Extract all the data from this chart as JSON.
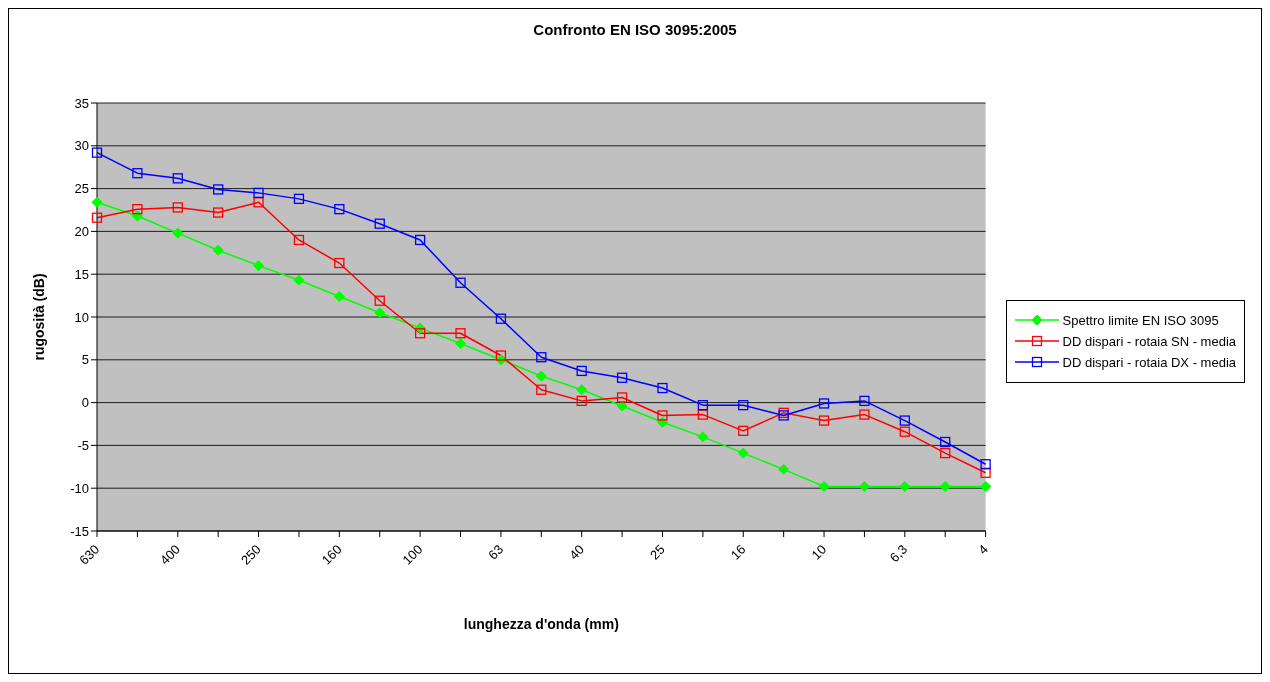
{
  "chart_data": {
    "type": "line",
    "title": "Confronto EN ISO 3095:2005",
    "xlabel": "lunghezza d'onda (mm)",
    "ylabel": "rugosità (dB)",
    "categories": [
      "630",
      null,
      "400",
      null,
      "250",
      null,
      "160",
      null,
      "100",
      null,
      "63",
      null,
      "40",
      null,
      "25",
      null,
      "16",
      null,
      "10",
      null,
      "6,3",
      null,
      "4"
    ],
    "series": [
      {
        "name": "Spettro limite EN ISO 3095",
        "color": "#00ff00",
        "marker": "diamond",
        "values": [
          23.4,
          21.8,
          19.8,
          17.8,
          16.0,
          14.3,
          12.4,
          10.5,
          8.7,
          6.9,
          5.0,
          3.1,
          1.5,
          -0.4,
          -2.3,
          -4.0,
          -5.9,
          -7.8,
          -9.8,
          -9.8,
          -9.8,
          -9.8,
          -9.8
        ]
      },
      {
        "name": "DD dispari - rotaia SN - media",
        "color": "#ff0000",
        "marker": "square",
        "values": [
          21.6,
          22.6,
          22.8,
          22.2,
          23.4,
          19.0,
          16.3,
          11.9,
          8.1,
          8.1,
          5.5,
          1.5,
          0.2,
          0.6,
          -1.5,
          -1.4,
          -3.3,
          -1.2,
          -2.1,
          -1.4,
          -3.4,
          -5.9,
          -8.2
        ]
      },
      {
        "name": "DD dispari - rotaia DX - media",
        "color": "#0000ff",
        "marker": "square",
        "values": [
          29.2,
          26.8,
          26.2,
          24.9,
          24.5,
          23.8,
          22.6,
          20.9,
          19.0,
          14.0,
          9.8,
          5.3,
          3.7,
          2.9,
          1.7,
          -0.3,
          -0.3,
          -1.5,
          -0.1,
          0.2,
          -2.1,
          -4.6,
          -7.2
        ]
      }
    ],
    "ylim": [
      -15,
      35
    ],
    "yticks": [
      -15,
      -10,
      -5,
      0,
      5,
      10,
      15,
      20,
      25,
      30,
      35
    ],
    "grid": "y",
    "legend": "right",
    "line_style": "solid"
  }
}
